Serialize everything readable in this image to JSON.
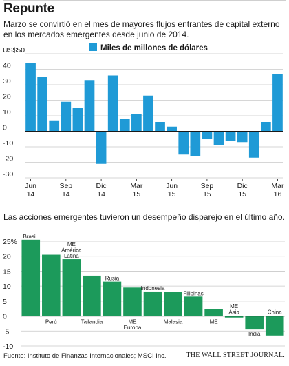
{
  "headline": "Repunte",
  "subhead": "Marzo se convirtió en el mes de mayores flujos entrantes de capital externo en los mercados emergentes desde junio de 2014.",
  "chart2_heading": "Las acciones emergentes tuvieron un desempeño disparejo en el último año.",
  "source": "Fuente: Instituto de Finanzas Internacionales; MSCI Inc.",
  "publisher": "THE WALL STREET JOURNAL.",
  "chart_data": [
    {
      "type": "bar",
      "legend": [
        "Miles de millones de dólares"
      ],
      "legend_position": "top",
      "colors": {
        "bars": "#1f9ad6",
        "grid": "#c8c8c8",
        "zero": "#1a1a1a"
      },
      "ytick_labels": [
        "US$50",
        "40",
        "30",
        "20",
        "10",
        "0",
        "-10",
        "-20",
        "-30"
      ],
      "ylim": [
        -30,
        50
      ],
      "grid": true,
      "x_labels": [
        {
          "index": 0,
          "line1": "Jun",
          "line2": "14"
        },
        {
          "index": 3,
          "line1": "Sep",
          "line2": "14"
        },
        {
          "index": 6,
          "line1": "Dic",
          "line2": "14"
        },
        {
          "index": 9,
          "line1": "Mar",
          "line2": "15"
        },
        {
          "index": 12,
          "line1": "Jun",
          "line2": "15"
        },
        {
          "index": 15,
          "line1": "Sep",
          "line2": "15"
        },
        {
          "index": 18,
          "line1": "Dic",
          "line2": "15"
        },
        {
          "index": 21,
          "line1": "Mar",
          "line2": "16"
        }
      ],
      "values": [
        44,
        35,
        7,
        19,
        15,
        33,
        -21,
        36,
        8,
        11,
        23,
        6,
        3,
        -15,
        -16,
        -5,
        -9,
        -6,
        -7,
        -17,
        6,
        37
      ]
    },
    {
      "type": "bar",
      "colors": {
        "bars": "#1c9a5b",
        "grid": "#c8c8c8",
        "zero": "#1a1a1a"
      },
      "ytick_labels": [
        "25%",
        "20",
        "15",
        "10",
        "5",
        "0",
        "-5",
        "-10"
      ],
      "ylim": [
        -10,
        25
      ],
      "grid": true,
      "categories": [
        [
          "Brasil"
        ],
        [
          "Perú"
        ],
        [
          "ME",
          "América",
          "Latina"
        ],
        [
          "Tailandia"
        ],
        [
          "Rusia"
        ],
        [
          "ME",
          "Europa"
        ],
        [
          "Indonesia"
        ],
        [
          "Malasia"
        ],
        [
          "Filipinas"
        ],
        [
          "ME"
        ],
        [
          "ME",
          "Asia"
        ],
        [
          "India"
        ],
        [
          "China"
        ]
      ],
      "values": [
        25.5,
        20.5,
        19,
        13.5,
        11.5,
        9.5,
        8.2,
        8.0,
        6.5,
        2.3,
        -0.5,
        -4.5,
        -6.5
      ]
    }
  ]
}
